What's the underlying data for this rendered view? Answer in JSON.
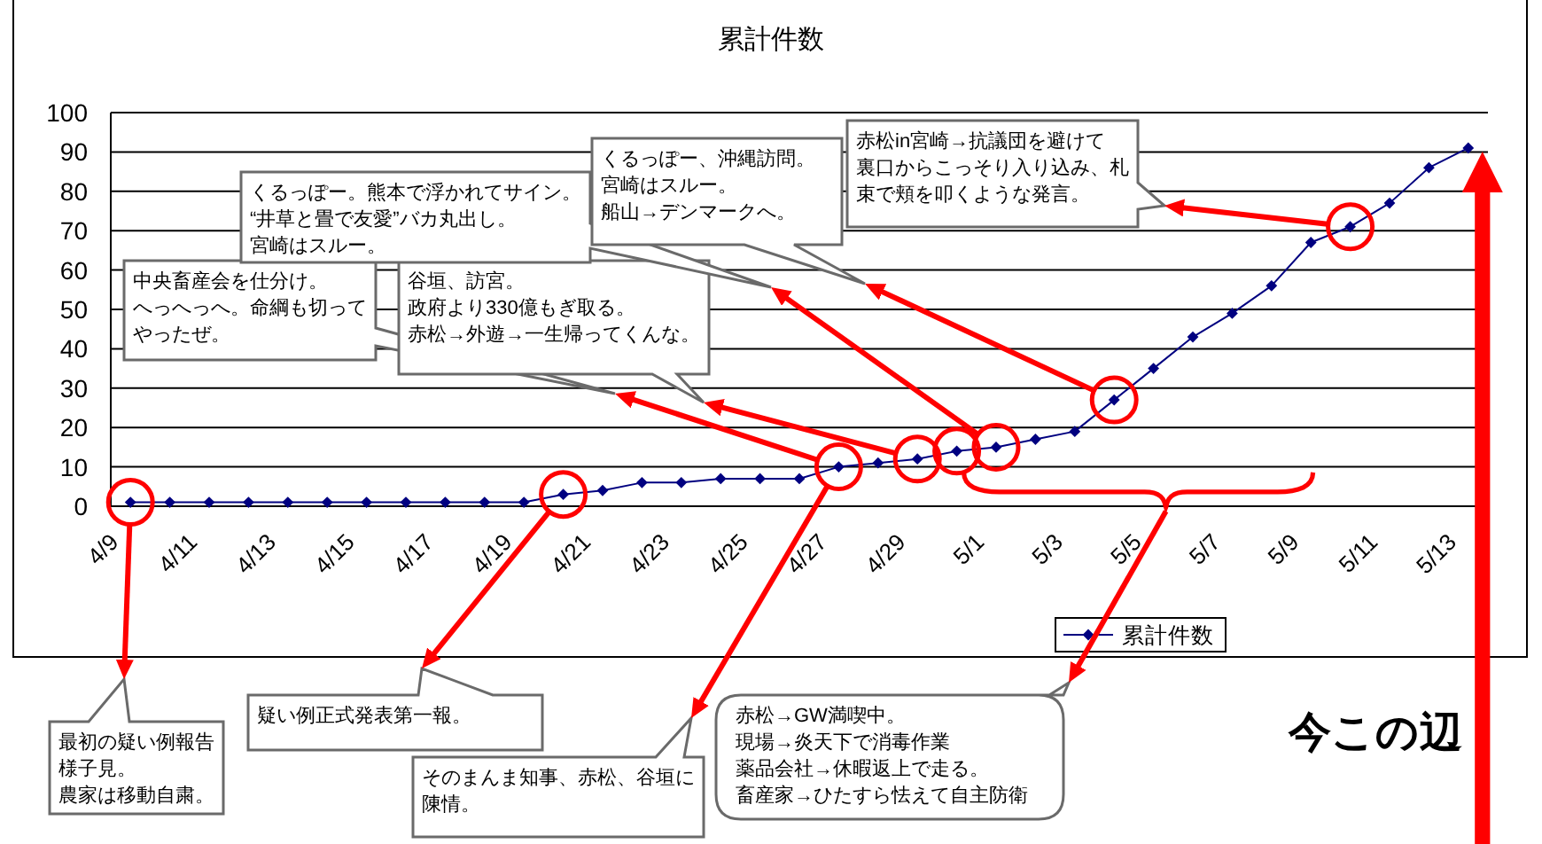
{
  "chart_data": {
    "type": "line",
    "title": "累計件数",
    "categories": [
      "4/9",
      null,
      "4/11",
      null,
      "4/13",
      null,
      "4/15",
      null,
      "4/17",
      null,
      "4/19",
      null,
      "4/21",
      null,
      "4/23",
      null,
      "4/25",
      null,
      "4/27",
      null,
      "4/29",
      null,
      "5/1",
      null,
      "5/3",
      null,
      "5/5",
      null,
      "5/7",
      null,
      "5/9",
      null,
      "5/11",
      null,
      "5/13"
    ],
    "series": [
      {
        "name": "累計件数",
        "color": "#000080",
        "values": [
          1,
          1,
          1,
          1,
          1,
          1,
          1,
          1,
          1,
          1,
          1,
          3,
          4,
          6,
          6,
          7,
          7,
          7,
          10,
          11,
          12,
          14,
          15,
          17,
          19,
          27,
          35,
          43,
          49,
          56,
          67,
          71,
          77,
          86,
          91
        ]
      }
    ],
    "ylim": [
      0,
      100
    ],
    "yticks": [
      0,
      10,
      20,
      30,
      40,
      50,
      60,
      70,
      80,
      90,
      100
    ],
    "grid": "y",
    "legend": "bottom",
    "marker": "diamond",
    "line_style": "solid",
    "annotations": [
      "最初の疑い例報告",
      "様子見。",
      "農家は移動自粛。",
      "疑い例正式発表第一報。",
      "そのまんま知事、赤松、谷垣に",
      "陳情。",
      "中央畜産会を仕分け。",
      "へっへっへ。命綱も切って",
      "やったぜ。",
      "谷垣、訪宮。",
      "政府より330億もぎ取る。",
      "赤松→外遊→一生帰ってくんな。",
      "赤松→GW満喫中。",
      "現場→炎天下で消毒作業",
      "薬品会社→休暇返上で走る。",
      "畜産家→ひたすら怯えて自主防衛",
      "くるっぽー。熊本で浮かれてサイン。",
      "“井草と畳で友愛”バカ丸出し。",
      "宮崎はスルー。",
      "くるっぽー、沖縄訪問。",
      "宮崎はスルー。",
      "船山→デンマークへ。",
      "赤松in宮崎→抗議団を避けて",
      "裏口からこっそり入り込み、札",
      "束で頬を叩くような発言。",
      "今この辺"
    ]
  }
}
